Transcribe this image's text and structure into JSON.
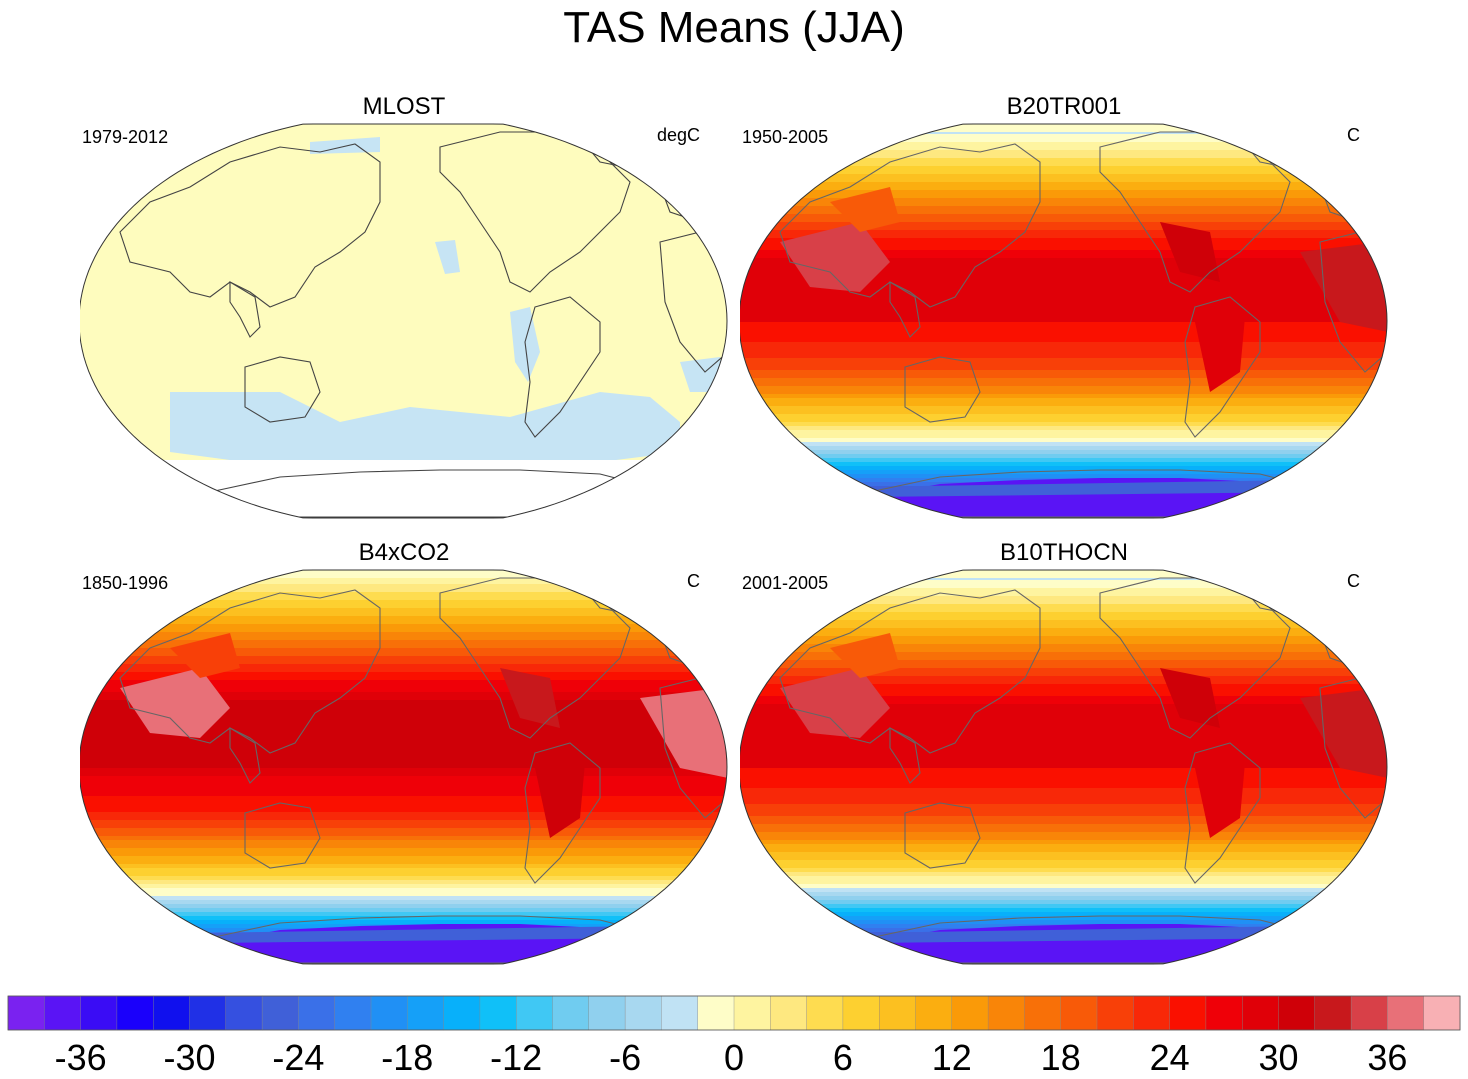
{
  "title": "TAS Means (JJA)",
  "panels": [
    {
      "title": "MLOST",
      "left_label": "1979-2012",
      "right_label": "degC",
      "style": "anomaly"
    },
    {
      "title": "B20TR001",
      "left_label": "1950-2005",
      "right_label": "C",
      "style": "full"
    },
    {
      "title": "B4xCO2",
      "left_label": "1850-1996",
      "right_label": "C",
      "style": "warm"
    },
    {
      "title": "B10THOCN",
      "left_label": "2001-2005",
      "right_label": "C",
      "style": "full"
    }
  ],
  "chart_data": {
    "type": "heatmap",
    "title": "TAS Means (JJA)",
    "projection": "Winkel tripel / Robinson-like global map, centered on Pacific",
    "colorbar": {
      "tick_labels": [
        "-36",
        "-30",
        "-24",
        "-18",
        "-12",
        "-6",
        "0",
        "6",
        "12",
        "18",
        "24",
        "30",
        "36"
      ],
      "levels_min": -40,
      "levels_max": 44,
      "level_step": 2,
      "colors": [
        "#7a22f0",
        "#5a14f5",
        "#3a0cf5",
        "#1a00fb",
        "#1010ee",
        "#2030e6",
        "#3550e0",
        "#4060d8",
        "#3a70e8",
        "#3080f0",
        "#2090f5",
        "#15a0f8",
        "#08b0fa",
        "#10c0f8",
        "#40c8f4",
        "#70ccf0",
        "#90d0ee",
        "#a8d8f0",
        "#c0e2f4",
        "#fefdc8",
        "#fef4a0",
        "#fee880",
        "#fedc50",
        "#fdd030",
        "#fcc020",
        "#fbae10",
        "#fa9a08",
        "#f98508",
        "#f87008",
        "#f85a08",
        "#f84008",
        "#f82808",
        "#fa1000",
        "#ef0008",
        "#e00008",
        "#cf0008",
        "#c8181c",
        "#d84048",
        "#e87078",
        "#f8b0b4"
      ]
    }
  }
}
